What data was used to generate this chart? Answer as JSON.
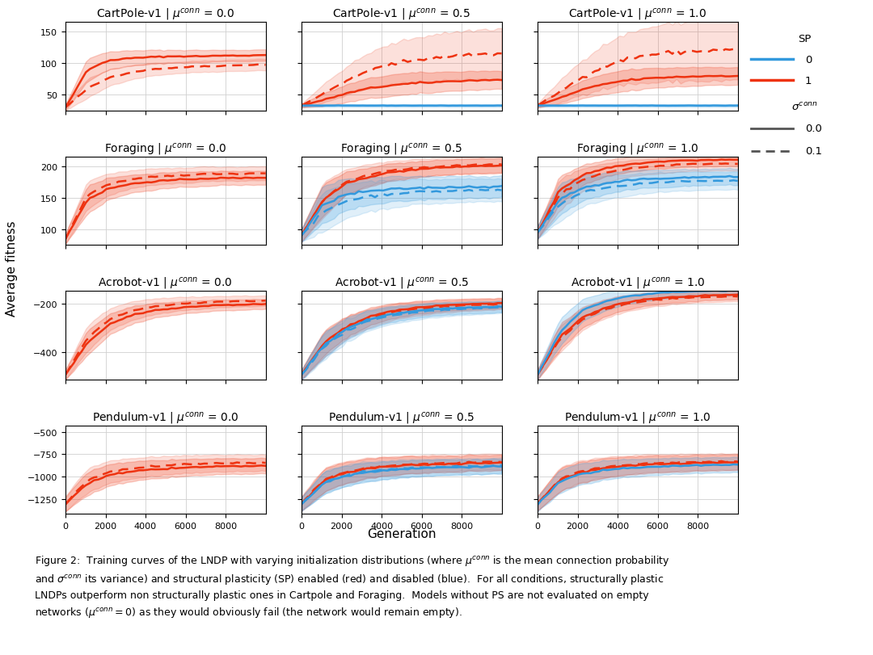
{
  "environments": [
    "CartPole-v1",
    "Foraging",
    "Acrobot-v1",
    "Pendulum-v1"
  ],
  "mu_values": [
    0.0,
    0.5,
    1.0
  ],
  "x_max": 10000,
  "n_pts": 50,
  "x_ticks": [
    0,
    2000,
    4000,
    6000,
    8000
  ],
  "color_sp0": "#3399dd",
  "color_sp1": "#ee3311",
  "fill_alpha_solid": 0.22,
  "fill_alpha_dashed": 0.15,
  "line_width": 1.8,
  "ylabel": "Average fitness",
  "xlabel": "Generation",
  "title_fontsize": 10,
  "tick_fontsize": 8,
  "label_fontsize": 11,
  "caption_fontsize": 9,
  "figure_caption": "Figure 2:  Training curves of the LNDP with varying initialization distributions (where $\\mu^{conn}$ is the mean connection probability\nand $\\sigma^{conn}$ its variance) and structural plasticity (SP) enabled (red) and disabled (blue).  For all conditions, structurally plastic\nLNDPs outperform non structurally plastic ones in Cartpole and Foraging.  Models without PS are not evaluated on empty\nnetworks ($\\mu^{conn} = 0$) as they would obviously fail (the network would remain empty).",
  "subplot_configs": {
    "CartPole-v1_0.0": {
      "ylim": [
        25,
        165
      ],
      "yticks": [
        50,
        100,
        150
      ],
      "has_sp0_solid": false,
      "has_sp0_dashed": false,
      "sp1_solid_mean": [
        30,
        90,
        105,
        108,
        110,
        111,
        111,
        112,
        112,
        113
      ],
      "sp1_solid_std": [
        5,
        18,
        14,
        12,
        11,
        10,
        10,
        9,
        9,
        9
      ],
      "sp1_dashed_mean": [
        30,
        60,
        78,
        86,
        91,
        93,
        95,
        96,
        97,
        98
      ],
      "sp1_dashed_std": [
        5,
        15,
        13,
        11,
        10,
        9,
        9,
        9,
        9,
        9
      ]
    },
    "CartPole-v1_0.5": {
      "ylim": [
        25,
        165
      ],
      "yticks": [
        50,
        100,
        150
      ],
      "has_sp0_solid": true,
      "has_sp0_dashed": false,
      "sp0_solid_mean": [
        33,
        33,
        33,
        33,
        33,
        33,
        33,
        33,
        33,
        33
      ],
      "sp0_solid_std": [
        2,
        2,
        2,
        2,
        2,
        2,
        2,
        2,
        2,
        2
      ],
      "sp1_solid_mean": [
        33,
        42,
        52,
        60,
        65,
        68,
        70,
        72,
        73,
        74
      ],
      "sp1_solid_std": [
        3,
        10,
        14,
        16,
        17,
        17,
        16,
        15,
        15,
        14
      ],
      "sp1_dashed_mean": [
        33,
        52,
        72,
        88,
        98,
        105,
        109,
        112,
        114,
        115
      ],
      "sp1_dashed_std": [
        3,
        15,
        22,
        28,
        32,
        35,
        37,
        38,
        39,
        40
      ]
    },
    "CartPole-v1_1.0": {
      "ylim": [
        25,
        165
      ],
      "yticks": [
        50,
        100,
        150
      ],
      "has_sp0_solid": true,
      "has_sp0_dashed": false,
      "sp0_solid_mean": [
        33,
        33,
        33,
        33,
        33,
        33,
        33,
        33,
        33,
        33
      ],
      "sp0_solid_std": [
        2,
        2,
        2,
        2,
        2,
        2,
        2,
        2,
        2,
        2
      ],
      "sp1_solid_mean": [
        33,
        45,
        58,
        67,
        73,
        76,
        78,
        79,
        80,
        80
      ],
      "sp1_solid_std": [
        3,
        10,
        14,
        16,
        17,
        16,
        15,
        15,
        14,
        14
      ],
      "sp1_dashed_mean": [
        33,
        55,
        78,
        95,
        107,
        113,
        117,
        119,
        120,
        121
      ],
      "sp1_dashed_std": [
        3,
        18,
        27,
        35,
        40,
        44,
        46,
        47,
        48,
        48
      ]
    },
    "Foraging_0.0": {
      "ylim": [
        75,
        215
      ],
      "yticks": [
        100,
        150,
        200
      ],
      "has_sp0_solid": false,
      "has_sp0_dashed": false,
      "sp1_solid_mean": [
        85,
        148,
        165,
        172,
        176,
        178,
        180,
        181,
        181,
        182
      ],
      "sp1_solid_std": [
        8,
        22,
        17,
        14,
        13,
        12,
        12,
        11,
        11,
        11
      ],
      "sp1_dashed_mean": [
        85,
        155,
        172,
        179,
        183,
        185,
        187,
        188,
        188,
        189
      ],
      "sp1_dashed_std": [
        8,
        22,
        17,
        14,
        13,
        12,
        12,
        11,
        11,
        11
      ]
    },
    "Foraging_0.5": {
      "ylim": [
        75,
        215
      ],
      "yticks": [
        100,
        150,
        200
      ],
      "has_sp0_solid": true,
      "has_sp0_dashed": true,
      "sp0_solid_mean": [
        90,
        140,
        155,
        160,
        163,
        165,
        166,
        167,
        167,
        168
      ],
      "sp0_solid_std": [
        10,
        30,
        25,
        22,
        20,
        19,
        18,
        18,
        17,
        17
      ],
      "sp0_dashed_mean": [
        90,
        128,
        145,
        152,
        156,
        159,
        160,
        161,
        162,
        162
      ],
      "sp0_dashed_std": [
        10,
        32,
        27,
        24,
        22,
        20,
        19,
        19,
        18,
        18
      ],
      "sp1_solid_mean": [
        90,
        148,
        172,
        183,
        190,
        194,
        197,
        199,
        200,
        201
      ],
      "sp1_solid_std": [
        10,
        25,
        18,
        15,
        14,
        13,
        12,
        12,
        12,
        12
      ],
      "sp1_dashed_mean": [
        90,
        148,
        175,
        186,
        193,
        197,
        199,
        201,
        202,
        203
      ],
      "sp1_dashed_std": [
        10,
        28,
        20,
        17,
        15,
        14,
        14,
        13,
        13,
        13
      ]
    },
    "Foraging_1.0": {
      "ylim": [
        75,
        215
      ],
      "yticks": [
        100,
        150,
        200
      ],
      "has_sp0_solid": true,
      "has_sp0_dashed": true,
      "sp0_solid_mean": [
        95,
        148,
        165,
        172,
        177,
        180,
        181,
        182,
        183,
        183
      ],
      "sp0_solid_std": [
        10,
        25,
        20,
        17,
        15,
        14,
        14,
        13,
        13,
        13
      ],
      "sp0_dashed_mean": [
        95,
        140,
        158,
        165,
        170,
        173,
        175,
        176,
        176,
        177
      ],
      "sp0_dashed_std": [
        10,
        27,
        22,
        19,
        17,
        16,
        15,
        15,
        14,
        14
      ],
      "sp1_solid_mean": [
        95,
        162,
        185,
        196,
        202,
        206,
        208,
        209,
        210,
        210
      ],
      "sp1_solid_std": [
        10,
        22,
        16,
        13,
        12,
        11,
        11,
        10,
        10,
        10
      ],
      "sp1_dashed_mean": [
        95,
        155,
        178,
        189,
        196,
        199,
        202,
        203,
        204,
        204
      ],
      "sp1_dashed_std": [
        10,
        25,
        18,
        15,
        13,
        12,
        12,
        11,
        11,
        11
      ]
    },
    "Acrobot-v1_0.0": {
      "ylim": [
        -510,
        -150
      ],
      "yticks": [
        -400,
        -200
      ],
      "has_sp0_solid": false,
      "has_sp0_dashed": false,
      "sp1_solid_mean": [
        -490,
        -360,
        -285,
        -248,
        -228,
        -218,
        -212,
        -207,
        -205,
        -203
      ],
      "sp1_solid_std": [
        20,
        50,
        42,
        36,
        30,
        26,
        24,
        22,
        21,
        20
      ],
      "sp1_dashed_mean": [
        -490,
        -340,
        -265,
        -230,
        -212,
        -203,
        -197,
        -193,
        -191,
        -189
      ],
      "sp1_dashed_std": [
        20,
        52,
        44,
        38,
        32,
        28,
        25,
        23,
        22,
        21
      ]
    },
    "Acrobot-v1_0.5": {
      "ylim": [
        -510,
        -150
      ],
      "yticks": [
        -400,
        -200
      ],
      "has_sp0_solid": true,
      "has_sp0_dashed": true,
      "sp0_solid_mean": [
        -490,
        -370,
        -305,
        -267,
        -245,
        -232,
        -224,
        -219,
        -216,
        -213
      ],
      "sp0_solid_std": [
        20,
        52,
        45,
        38,
        33,
        29,
        27,
        25,
        24,
        23
      ],
      "sp0_dashed_mean": [
        -490,
        -378,
        -312,
        -273,
        -250,
        -237,
        -229,
        -223,
        -219,
        -216
      ],
      "sp0_dashed_std": [
        20,
        54,
        47,
        40,
        35,
        31,
        28,
        26,
        25,
        24
      ],
      "sp1_solid_mean": [
        -490,
        -362,
        -295,
        -255,
        -232,
        -219,
        -211,
        -205,
        -202,
        -199
      ],
      "sp1_solid_std": [
        20,
        50,
        43,
        36,
        31,
        27,
        25,
        23,
        22,
        21
      ],
      "sp1_dashed_mean": [
        -490,
        -370,
        -302,
        -262,
        -238,
        -224,
        -215,
        -210,
        -206,
        -203
      ],
      "sp1_dashed_std": [
        20,
        52,
        45,
        38,
        33,
        29,
        26,
        24,
        23,
        22
      ]
    },
    "Acrobot-v1_1.0": {
      "ylim": [
        -510,
        -150
      ],
      "yticks": [
        -400,
        -200
      ],
      "has_sp0_solid": true,
      "has_sp0_dashed": false,
      "sp0_solid_mean": [
        -490,
        -318,
        -230,
        -192,
        -172,
        -161,
        -155,
        -151,
        -149,
        -147
      ],
      "sp0_solid_std": [
        20,
        55,
        45,
        37,
        31,
        27,
        24,
        22,
        21,
        20
      ],
      "sp1_solid_mean": [
        -490,
        -338,
        -258,
        -218,
        -196,
        -183,
        -175,
        -170,
        -167,
        -165
      ],
      "sp1_solid_std": [
        20,
        52,
        42,
        35,
        30,
        26,
        23,
        21,
        20,
        19
      ],
      "sp1_dashed_mean": [
        -490,
        -345,
        -265,
        -225,
        -202,
        -189,
        -181,
        -176,
        -173,
        -171
      ],
      "sp1_dashed_std": [
        20,
        54,
        44,
        37,
        31,
        27,
        24,
        22,
        21,
        20
      ]
    },
    "Pendulum-v1_0.0": {
      "ylim": [
        -1420,
        -430
      ],
      "yticks": [
        -1250,
        -1000,
        -750,
        -500
      ],
      "has_sp0_solid": false,
      "has_sp0_dashed": false,
      "sp1_solid_mean": [
        -1310,
        -1075,
        -985,
        -945,
        -920,
        -905,
        -895,
        -888,
        -884,
        -881
      ],
      "sp1_solid_std": [
        80,
        130,
        120,
        110,
        102,
        96,
        92,
        89,
        87,
        86
      ],
      "sp1_dashed_mean": [
        -1300,
        -1038,
        -948,
        -908,
        -884,
        -869,
        -860,
        -853,
        -849,
        -846
      ],
      "sp1_dashed_std": [
        85,
        135,
        125,
        115,
        107,
        101,
        97,
        94,
        92,
        90
      ]
    },
    "Pendulum-v1_0.5": {
      "ylim": [
        -1420,
        -430
      ],
      "yticks": [
        -1250,
        -1000,
        -750,
        -500
      ],
      "has_sp0_solid": true,
      "has_sp0_dashed": true,
      "sp0_solid_mean": [
        -1310,
        -1075,
        -990,
        -950,
        -926,
        -911,
        -901,
        -895,
        -890,
        -887
      ],
      "sp0_solid_std": [
        75,
        125,
        115,
        106,
        98,
        93,
        89,
        86,
        84,
        83
      ],
      "sp0_dashed_mean": [
        -1308,
        -1070,
        -984,
        -944,
        -920,
        -905,
        -895,
        -889,
        -885,
        -882
      ],
      "sp0_dashed_std": [
        78,
        128,
        118,
        109,
        101,
        96,
        92,
        89,
        87,
        86
      ],
      "sp1_solid_mean": [
        -1308,
        -1048,
        -955,
        -912,
        -887,
        -872,
        -862,
        -856,
        -851,
        -848
      ],
      "sp1_solid_std": [
        78,
        130,
        120,
        110,
        102,
        97,
        92,
        90,
        88,
        87
      ],
      "sp1_dashed_mean": [
        -1305,
        -1040,
        -947,
        -904,
        -879,
        -864,
        -854,
        -848,
        -843,
        -840
      ],
      "sp1_dashed_std": [
        80,
        132,
        122,
        112,
        104,
        99,
        95,
        92,
        90,
        89
      ]
    },
    "Pendulum-v1_1.0": {
      "ylim": [
        -1420,
        -430
      ],
      "yticks": [
        -1250,
        -1000,
        -750,
        -500
      ],
      "has_sp0_solid": true,
      "has_sp0_dashed": false,
      "sp0_solid_mean": [
        -1308,
        -1060,
        -972,
        -931,
        -907,
        -892,
        -882,
        -876,
        -871,
        -868
      ],
      "sp0_solid_std": [
        78,
        128,
        118,
        108,
        100,
        95,
        91,
        88,
        86,
        85
      ],
      "sp1_solid_mean": [
        -1305,
        -1042,
        -950,
        -907,
        -882,
        -867,
        -857,
        -851,
        -846,
        -843
      ],
      "sp1_solid_std": [
        80,
        130,
        120,
        110,
        102,
        97,
        93,
        90,
        88,
        87
      ],
      "sp1_dashed_mean": [
        -1302,
        -1032,
        -939,
        -896,
        -871,
        -856,
        -846,
        -840,
        -836,
        -833
      ],
      "sp1_dashed_std": [
        82,
        133,
        123,
        113,
        105,
        100,
        96,
        93,
        91,
        90
      ]
    }
  }
}
